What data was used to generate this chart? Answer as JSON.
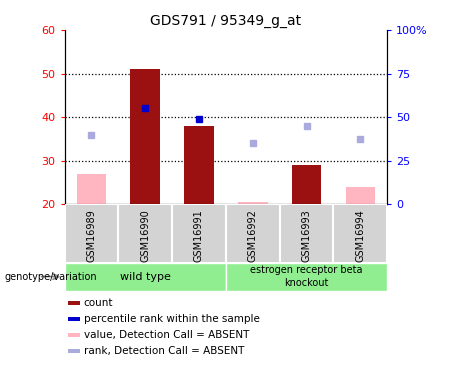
{
  "title": "GDS791 / 95349_g_at",
  "samples": [
    "GSM16989",
    "GSM16990",
    "GSM16991",
    "GSM16992",
    "GSM16993",
    "GSM16994"
  ],
  "present_count": [
    null,
    51,
    38,
    null,
    29,
    null
  ],
  "present_rank": [
    null,
    42,
    39.5,
    null,
    null,
    null
  ],
  "absent_count": [
    27,
    null,
    null,
    20.5,
    null,
    24
  ],
  "absent_rank": [
    36,
    null,
    null,
    34,
    38,
    35
  ],
  "ylim_left": [
    20,
    60
  ],
  "ylim_right": [
    0,
    100
  ],
  "yticks_left": [
    20,
    30,
    40,
    50,
    60
  ],
  "yticks_right": [
    0,
    25,
    50,
    75,
    100
  ],
  "ytick_labels_left": [
    "20",
    "30",
    "40",
    "50",
    "60"
  ],
  "ytick_labels_right": [
    "0",
    "25",
    "50",
    "75",
    "100%"
  ],
  "bar_bottom": 20,
  "color_red_bar": "#9B1010",
  "color_pink_bar": "#FFB6C1",
  "color_blue_marker": "#0000CC",
  "color_blue_light_marker": "#AAAADD",
  "legend_items": [
    {
      "label": "count",
      "color": "#9B1010"
    },
    {
      "label": "percentile rank within the sample",
      "color": "#0000CC"
    },
    {
      "label": "value, Detection Call = ABSENT",
      "color": "#FFB6C1"
    },
    {
      "label": "rank, Detection Call = ABSENT",
      "color": "#AAAADD"
    }
  ],
  "group_label": "genotype/variation",
  "wt_label": "wild type",
  "ko_label": "estrogen receptor beta\nknockout",
  "group_bg": "#90EE90",
  "sample_bg": "#D3D3D3",
  "bar_width": 0.55
}
